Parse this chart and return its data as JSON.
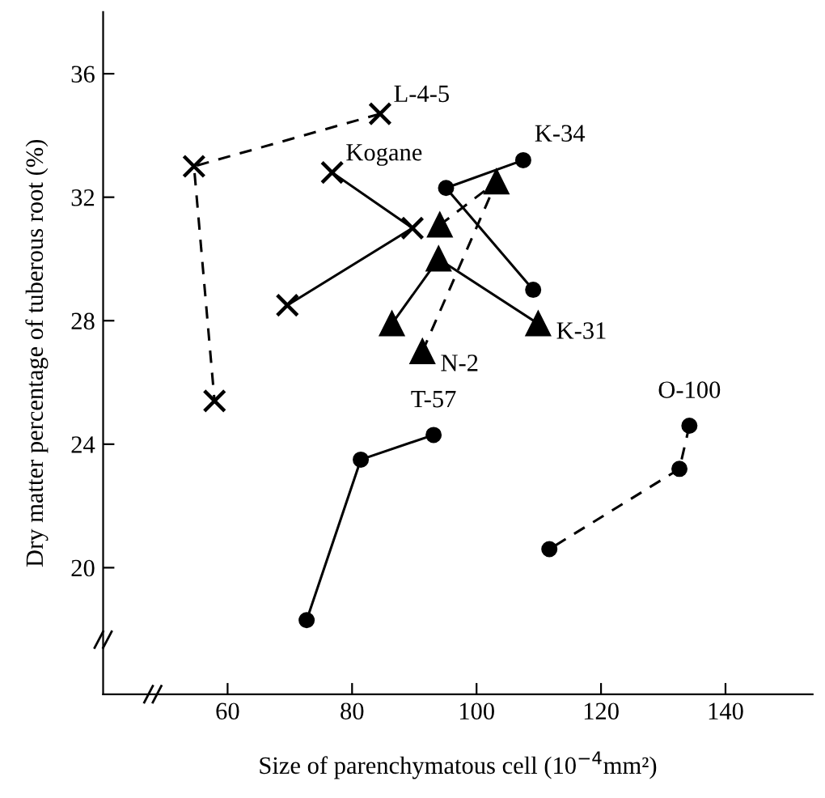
{
  "chart_data": {
    "type": "line",
    "xlabel": "Size of parenchymatous cell (10$^{−4}$mm²)",
    "ylabel": "Dry matter percentage of tuberous root (%)",
    "xlim": [
      40,
      154
    ],
    "ylim": [
      15.9,
      38
    ],
    "xticks": [
      60,
      80,
      100,
      120,
      140
    ],
    "yticks": [
      20,
      24,
      28,
      32,
      36
    ],
    "grid": false,
    "legend": false,
    "series": [
      {
        "name": "L-4-5",
        "color": "#000000",
        "marker": "cross",
        "line_style": "dashed",
        "x": [
          84.5,
          54.6,
          57.9
        ],
        "values": [
          34.7,
          33.0,
          25.4
        ]
      },
      {
        "name": "Kogane",
        "color": "#000000",
        "marker": "cross",
        "line_style": "solid",
        "x": [
          76.8,
          89.7,
          69.6
        ],
        "values": [
          32.8,
          31.0,
          28.5
        ]
      },
      {
        "name": "K-34",
        "color": "#000000",
        "marker": "circle",
        "line_style": "solid",
        "x": [
          107.5,
          95.1,
          109.1
        ],
        "values": [
          33.2,
          32.3,
          29.0
        ]
      },
      {
        "name": "K-31",
        "color": "#000000",
        "marker": "triangle",
        "line_style": "solid",
        "x": [
          109.9,
          93.9,
          86.4
        ],
        "values": [
          27.9,
          30.0,
          27.9
        ]
      },
      {
        "name": "N-2",
        "color": "#000000",
        "marker": "triangle",
        "line_style": "dashed",
        "x": [
          91.3,
          103.2,
          94.1
        ],
        "values": [
          27.0,
          32.5,
          31.1
        ]
      },
      {
        "name": "T-57",
        "color": "#000000",
        "marker": "circle",
        "line_style": "solid",
        "x": [
          93.1,
          81.4,
          72.7
        ],
        "values": [
          24.3,
          23.5,
          18.3
        ]
      },
      {
        "name": "O-100",
        "color": "#000000",
        "marker": "circle",
        "line_style": "dashed",
        "x": [
          134.2,
          132.6,
          111.7
        ],
        "values": [
          24.6,
          23.2,
          20.6
        ]
      }
    ]
  }
}
